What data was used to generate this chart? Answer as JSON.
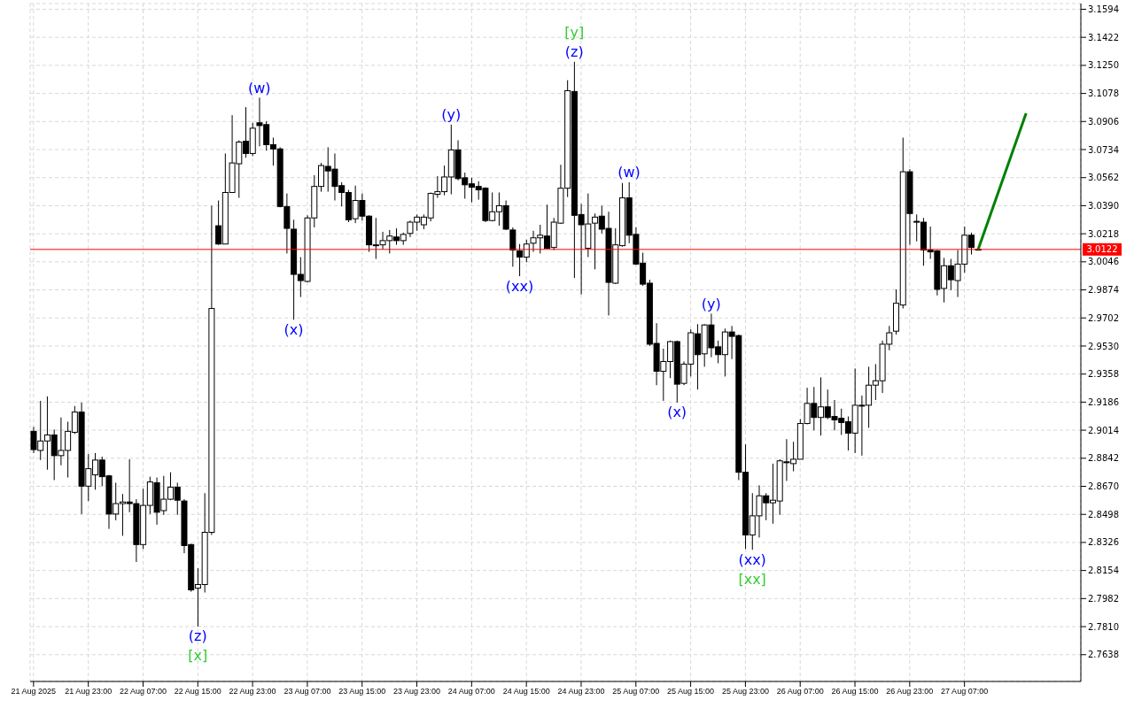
{
  "chart_data": {
    "type": "candlestick",
    "x": [
      "2025-08-21T15:00",
      "2025-08-21T16:00",
      "2025-08-21T17:00",
      "2025-08-21T18:00",
      "2025-08-21T19:00",
      "2025-08-21T20:00",
      "2025-08-21T21:00",
      "2025-08-21T22:00",
      "2025-08-21T23:00",
      "2025-08-22T00:00",
      "2025-08-22T01:00",
      "2025-08-22T02:00",
      "2025-08-22T03:00",
      "2025-08-22T04:00",
      "2025-08-22T05:00",
      "2025-08-22T06:00",
      "2025-08-22T07:00",
      "2025-08-22T08:00",
      "2025-08-22T09:00",
      "2025-08-22T10:00",
      "2025-08-22T11:00",
      "2025-08-22T12:00",
      "2025-08-22T13:00",
      "2025-08-22T14:00",
      "2025-08-22T15:00",
      "2025-08-22T16:00",
      "2025-08-22T17:00",
      "2025-08-22T18:00",
      "2025-08-22T19:00",
      "2025-08-22T20:00",
      "2025-08-22T21:00",
      "2025-08-22T22:00",
      "2025-08-22T23:00",
      "2025-08-23T00:00",
      "2025-08-23T01:00",
      "2025-08-23T02:00",
      "2025-08-23T03:00",
      "2025-08-23T04:00",
      "2025-08-23T05:00",
      "2025-08-23T06:00",
      "2025-08-23T07:00",
      "2025-08-23T08:00",
      "2025-08-23T09:00",
      "2025-08-23T10:00",
      "2025-08-23T11:00",
      "2025-08-23T12:00",
      "2025-08-23T13:00",
      "2025-08-23T14:00",
      "2025-08-23T15:00",
      "2025-08-23T16:00",
      "2025-08-23T17:00",
      "2025-08-23T18:00",
      "2025-08-23T19:00",
      "2025-08-23T20:00",
      "2025-08-23T21:00",
      "2025-08-23T22:00",
      "2025-08-23T23:00",
      "2025-08-24T00:00",
      "2025-08-24T01:00",
      "2025-08-24T02:00",
      "2025-08-24T03:00",
      "2025-08-24T04:00",
      "2025-08-24T05:00",
      "2025-08-24T06:00",
      "2025-08-24T07:00",
      "2025-08-24T08:00",
      "2025-08-24T09:00",
      "2025-08-24T10:00",
      "2025-08-24T11:00",
      "2025-08-24T12:00",
      "2025-08-24T13:00",
      "2025-08-24T14:00",
      "2025-08-24T15:00",
      "2025-08-24T16:00",
      "2025-08-24T17:00",
      "2025-08-24T18:00",
      "2025-08-24T19:00",
      "2025-08-24T20:00",
      "2025-08-24T21:00",
      "2025-08-24T22:00",
      "2025-08-24T23:00",
      "2025-08-25T00:00",
      "2025-08-25T01:00",
      "2025-08-25T02:00",
      "2025-08-25T03:00",
      "2025-08-25T04:00",
      "2025-08-25T05:00",
      "2025-08-25T06:00",
      "2025-08-25T07:00",
      "2025-08-25T08:00",
      "2025-08-25T09:00",
      "2025-08-25T10:00",
      "2025-08-25T11:00",
      "2025-08-25T12:00",
      "2025-08-25T13:00",
      "2025-08-25T14:00",
      "2025-08-25T15:00",
      "2025-08-25T16:00",
      "2025-08-25T17:00",
      "2025-08-25T18:00",
      "2025-08-25T19:00",
      "2025-08-25T20:00",
      "2025-08-25T21:00",
      "2025-08-25T22:00",
      "2025-08-25T23:00",
      "2025-08-26T00:00",
      "2025-08-26T01:00",
      "2025-08-26T02:00",
      "2025-08-26T03:00",
      "2025-08-26T04:00",
      "2025-08-26T05:00",
      "2025-08-26T06:00",
      "2025-08-26T07:00",
      "2025-08-26T08:00",
      "2025-08-26T09:00",
      "2025-08-26T10:00",
      "2025-08-26T11:00",
      "2025-08-26T12:00",
      "2025-08-26T13:00",
      "2025-08-26T14:00",
      "2025-08-26T15:00",
      "2025-08-26T16:00",
      "2025-08-26T17:00",
      "2025-08-26T18:00",
      "2025-08-26T19:00",
      "2025-08-26T20:00",
      "2025-08-26T21:00",
      "2025-08-26T22:00",
      "2025-08-26T23:00",
      "2025-08-27T00:00",
      "2025-08-27T01:00",
      "2025-08-27T02:00",
      "2025-08-27T03:00",
      "2025-08-27T04:00",
      "2025-08-27T05:00",
      "2025-08-27T06:00",
      "2025-08-27T07:00",
      "2025-08-27T08:00",
      "2025-08-27T09:00"
    ],
    "ohlc": [
      [
        2.9007,
        2.9034,
        2.8874,
        2.8895
      ],
      [
        2.889,
        2.9194,
        2.8831,
        2.8948
      ],
      [
        2.8948,
        2.9221,
        2.8772,
        2.8985
      ],
      [
        2.8985,
        2.9018,
        2.8708,
        2.8858
      ],
      [
        2.8858,
        2.9092,
        2.8799,
        2.889
      ],
      [
        2.889,
        2.9066,
        2.8724,
        2.9007
      ],
      [
        2.9001,
        2.9162,
        2.8991,
        2.9125
      ],
      [
        2.9125,
        2.9183,
        2.85,
        2.8671
      ],
      [
        2.8671,
        2.8869,
        2.858,
        2.8778
      ],
      [
        2.874,
        2.8874,
        2.8649,
        2.8831
      ],
      [
        2.8831,
        2.8852,
        2.8671,
        2.8729
      ],
      [
        2.8734,
        2.874,
        2.8409,
        2.85
      ],
      [
        2.85,
        2.8692,
        2.8462,
        2.8564
      ],
      [
        2.8564,
        2.8623,
        2.8367,
        2.8574
      ],
      [
        2.8574,
        2.8836,
        2.8511,
        2.8564
      ],
      [
        2.8564,
        2.8591,
        2.8206,
        2.8313
      ],
      [
        2.8313,
        2.8655,
        2.8286,
        2.8553
      ],
      [
        2.8553,
        2.8729,
        2.85,
        2.8697
      ],
      [
        2.8692,
        2.8724,
        2.8435,
        2.8511
      ],
      [
        2.8521,
        2.8734,
        2.8495,
        2.8591
      ],
      [
        2.8591,
        2.8756,
        2.8585,
        2.8665
      ],
      [
        2.8665,
        2.8692,
        2.8495,
        2.8585
      ],
      [
        2.858,
        2.8591,
        2.826,
        2.8307
      ],
      [
        2.8313,
        2.8318,
        2.8024,
        2.8035
      ],
      [
        2.8046,
        2.8168,
        2.7811,
        2.8068
      ],
      [
        2.8068,
        2.8628,
        2.8019,
        2.8388
      ],
      [
        2.8388,
        3.039,
        2.8372,
        2.976
      ],
      [
        3.0267,
        3.0422,
        3.015,
        3.0155
      ],
      [
        3.0155,
        3.071,
        3.0155,
        3.0471
      ],
      [
        3.0471,
        3.0945,
        3.0471,
        3.0652
      ],
      [
        3.0647,
        3.0791,
        3.0438,
        3.078
      ],
      [
        3.0785,
        3.0994,
        3.0684,
        3.071
      ],
      [
        3.071,
        3.0898,
        3.0694,
        3.0865
      ],
      [
        3.0898,
        3.1052,
        3.0754,
        3.0881
      ],
      [
        3.0887,
        3.0908,
        3.0727,
        3.0764
      ],
      [
        3.0764,
        3.0807,
        3.0636,
        3.0738
      ],
      [
        3.0738,
        3.0748,
        3.038,
        3.0385
      ],
      [
        3.0385,
        3.0465,
        3.0097,
        3.0251
      ],
      [
        3.0246,
        3.0304,
        2.9691,
        2.9969
      ],
      [
        2.9969,
        3.0075,
        2.983,
        2.9931
      ],
      [
        2.9926,
        3.0331,
        2.992,
        3.0315
      ],
      [
        3.0315,
        3.0577,
        3.0257,
        3.0508
      ],
      [
        3.0508,
        3.0652,
        3.0476,
        3.0636
      ],
      [
        3.0631,
        3.0748,
        3.0476,
        3.0603
      ],
      [
        3.0614,
        3.071,
        3.0422,
        3.0508
      ],
      [
        3.0513,
        3.0534,
        3.0385,
        3.0471
      ],
      [
        3.0471,
        3.0487,
        3.0289,
        3.0304
      ],
      [
        3.031,
        3.0513,
        3.0283,
        3.0422
      ],
      [
        3.0422,
        3.0465,
        3.0299,
        3.0326
      ],
      [
        3.0326,
        3.0331,
        3.0107,
        3.015
      ],
      [
        3.015,
        3.0315,
        3.0064,
        3.015
      ],
      [
        3.015,
        3.023,
        3.0123,
        3.0176
      ],
      [
        3.0176,
        3.0241,
        3.0097,
        3.0204
      ],
      [
        3.0198,
        3.0251,
        3.015,
        3.0176
      ],
      [
        3.0176,
        3.0225,
        3.015,
        3.0214
      ],
      [
        3.022,
        3.0299,
        3.0198,
        3.0289
      ],
      [
        3.0289,
        3.0336,
        3.0236,
        3.032
      ],
      [
        3.0273,
        3.0336,
        3.0246,
        3.032
      ],
      [
        3.0315,
        3.0471,
        3.0294,
        3.0465
      ],
      [
        3.046,
        3.0571,
        3.0438,
        3.0476
      ],
      [
        3.0476,
        3.0636,
        3.0454,
        3.0566
      ],
      [
        3.0566,
        3.0887,
        3.046,
        3.0732
      ],
      [
        3.0732,
        3.0791,
        3.0545,
        3.0556
      ],
      [
        3.0561,
        3.0593,
        3.0433,
        3.0518
      ],
      [
        3.0524,
        3.0561,
        3.0411,
        3.0503
      ],
      [
        3.0508,
        3.054,
        3.0427,
        3.0487
      ],
      [
        3.0497,
        3.0503,
        3.0289,
        3.0299
      ],
      [
        3.0299,
        3.0471,
        3.0294,
        3.0353
      ],
      [
        3.0353,
        3.0471,
        3.0267,
        3.039
      ],
      [
        3.039,
        3.0422,
        3.0241,
        3.0246
      ],
      [
        3.0241,
        3.0257,
        3.0016,
        3.0118
      ],
      [
        3.0113,
        3.0155,
        2.9958,
        3.0075
      ],
      [
        3.0075,
        3.0182,
        3.0043,
        3.0155
      ],
      [
        3.016,
        3.0236,
        3.0107,
        3.0193
      ],
      [
        3.0193,
        3.0273,
        3.0097,
        3.0209
      ],
      [
        3.0204,
        3.0396,
        3.0129,
        3.0129
      ],
      [
        3.0134,
        3.0315,
        3.0118,
        3.0289
      ],
      [
        3.0283,
        3.0641,
        3.0278,
        3.0497
      ],
      [
        3.0497,
        3.1159,
        3.0443,
        3.1095
      ],
      [
        3.109,
        3.1272,
        2.9947,
        3.0331
      ],
      [
        3.0336,
        3.0401,
        2.9846,
        3.0273
      ],
      [
        3.0129,
        3.0465,
        3.0075,
        3.0278
      ],
      [
        3.0283,
        3.0342,
        3.0,
        3.032
      ],
      [
        3.0326,
        3.039,
        3.022,
        3.0246
      ],
      [
        3.0251,
        3.0353,
        2.9717,
        2.992
      ],
      [
        2.9915,
        3.0251,
        2.991,
        3.015
      ],
      [
        3.0145,
        3.0529,
        3.0139,
        3.0438
      ],
      [
        3.0438,
        3.0534,
        3.016,
        3.0209
      ],
      [
        3.0214,
        3.0257,
        3.0027,
        3.0032
      ],
      [
        3.0038,
        3.0102,
        2.9899,
        2.9909
      ],
      [
        2.9915,
        2.9936,
        2.953,
        2.9541
      ],
      [
        2.9546,
        2.967,
        2.929,
        2.9375
      ],
      [
        2.9375,
        2.9514,
        2.9194,
        2.9435
      ],
      [
        2.9435,
        2.9563,
        2.9333,
        2.9557
      ],
      [
        2.9557,
        2.9563,
        2.9183,
        2.9296
      ],
      [
        2.9301,
        2.9435,
        2.929,
        2.9419
      ],
      [
        2.9419,
        2.9632,
        2.9343,
        2.9611
      ],
      [
        2.9605,
        2.9664,
        2.9263,
        2.9477
      ],
      [
        2.9482,
        2.9664,
        2.9403,
        2.9659
      ],
      [
        2.9659,
        2.9728,
        2.9461,
        2.9519
      ],
      [
        2.9525,
        2.9563,
        2.9424,
        2.9477
      ],
      [
        2.9477,
        2.9637,
        2.9343,
        2.9616
      ],
      [
        2.9616,
        2.9653,
        2.945,
        2.9589
      ],
      [
        2.9594,
        2.96,
        2.8708,
        2.8756
      ],
      [
        2.8756,
        2.8927,
        2.8286,
        2.8372
      ],
      [
        2.8372,
        2.8628,
        2.8281,
        2.8489
      ],
      [
        2.8489,
        2.8676,
        2.8356,
        2.8612
      ],
      [
        2.8612,
        2.8628,
        2.8462,
        2.8569
      ],
      [
        2.8569,
        2.8809,
        2.8441,
        2.8585
      ],
      [
        2.858,
        2.8836,
        2.8495,
        2.8826
      ],
      [
        2.882,
        2.8959,
        2.8703,
        2.8815
      ],
      [
        2.8809,
        2.8943,
        2.8762,
        2.8836
      ],
      [
        2.8836,
        2.9082,
        2.8836,
        2.9055
      ],
      [
        2.9055,
        2.9274,
        2.905,
        2.9178
      ],
      [
        2.9178,
        2.9279,
        2.9013,
        2.9092
      ],
      [
        2.9092,
        2.9338,
        2.8981,
        2.9157
      ],
      [
        2.9157,
        2.9263,
        2.9082,
        2.9092
      ],
      [
        2.9098,
        2.9199,
        2.9013,
        2.9077
      ],
      [
        2.9087,
        2.9146,
        2.8985,
        2.9061
      ],
      [
        2.9066,
        2.9098,
        2.889,
        2.8996
      ],
      [
        2.8996,
        2.9392,
        2.8874,
        2.9167
      ],
      [
        2.9167,
        2.9226,
        2.8858,
        2.9162
      ],
      [
        2.9167,
        2.9403,
        2.9029,
        2.929
      ],
      [
        2.929,
        2.9419,
        2.9199,
        2.9317
      ],
      [
        2.9317,
        2.9563,
        2.9242,
        2.9541
      ],
      [
        2.9541,
        2.9653,
        2.9504,
        2.9611
      ],
      [
        2.9621,
        2.9877,
        2.96,
        2.9792
      ],
      [
        2.9781,
        3.0807,
        2.976,
        3.0598
      ],
      [
        3.0598,
        3.0614,
        3.015,
        3.0342
      ],
      [
        3.0294,
        3.0336,
        3.0171,
        3.0294
      ],
      [
        3.0289,
        3.0315,
        3.0022,
        3.0118
      ],
      [
        3.0118,
        3.0262,
        3.0064,
        3.0107
      ],
      [
        3.0113,
        3.0118,
        2.984,
        2.9877
      ],
      [
        2.9883,
        3.007,
        2.9797,
        3.0022
      ],
      [
        3.0022,
        3.0064,
        2.9872,
        2.9936
      ],
      [
        2.9931,
        3.0118,
        2.983,
        3.0032
      ],
      [
        3.0032,
        3.0262,
        2.9979,
        3.0209
      ],
      [
        3.0209,
        3.0225,
        3.0091,
        3.0134
      ],
      [
        3.0123,
        3.0128,
        3.0118,
        3.0122
      ]
    ],
    "series": [
      {
        "type": "line",
        "x": [
          "2025-08-27T09:00",
          "2025-08-27T16:00"
        ],
        "values": [
          3.0122,
          3.0956
        ],
        "color": "#008000"
      }
    ],
    "xlim": [
      "2025-08-21T14:30",
      "2025-08-28T00:00"
    ],
    "xticks": [
      {
        "value": "2025-08-21T15:00",
        "label": "21 Aug 2025"
      },
      {
        "value": "2025-08-21T23:00",
        "label": "21 Aug 23:00"
      },
      {
        "value": "2025-08-22T07:00",
        "label": "22 Aug 07:00"
      },
      {
        "value": "2025-08-22T15:00",
        "label": "22 Aug 15:00"
      },
      {
        "value": "2025-08-22T23:00",
        "label": "22 Aug 23:00"
      },
      {
        "value": "2025-08-23T07:00",
        "label": "23 Aug 07:00"
      },
      {
        "value": "2025-08-23T15:00",
        "label": "23 Aug 15:00"
      },
      {
        "value": "2025-08-23T23:00",
        "label": "23 Aug 23:00"
      },
      {
        "value": "2025-08-24T07:00",
        "label": "24 Aug 07:00"
      },
      {
        "value": "2025-08-24T15:00",
        "label": "24 Aug 15:00"
      },
      {
        "value": "2025-08-24T23:00",
        "label": "24 Aug 23:00"
      },
      {
        "value": "2025-08-25T07:00",
        "label": "25 Aug 07:00"
      },
      {
        "value": "2025-08-25T15:00",
        "label": "25 Aug 15:00"
      },
      {
        "value": "2025-08-25T23:00",
        "label": "25 Aug 23:00"
      },
      {
        "value": "2025-08-26T07:00",
        "label": "26 Aug 07:00"
      },
      {
        "value": "2025-08-26T15:00",
        "label": "26 Aug 15:00"
      },
      {
        "value": "2025-08-26T23:00",
        "label": "26 Aug 23:00"
      },
      {
        "value": "2025-08-27T07:00",
        "label": "27 Aug 07:00"
      }
    ],
    "ylim": [
      2.7474,
      3.1629
    ],
    "yticks": [
      3.1594,
      3.1422,
      {
        "value": 3.125,
        "label": "3.1250"
      },
      3.1078,
      3.0906,
      3.0734,
      3.0562,
      {
        "value": 3.039,
        "label": "3.0390"
      },
      3.0218,
      3.0046,
      2.9874,
      2.9702,
      {
        "value": 2.953,
        "label": "2.9530"
      },
      2.9358,
      2.9186,
      2.9014,
      2.8842,
      {
        "value": 2.867,
        "label": "2.8670"
      },
      2.8498,
      2.8326,
      2.8154,
      2.7982,
      {
        "value": 2.781,
        "label": "2.7810"
      },
      2.7638
    ],
    "grid": true,
    "ref_lines": [
      {
        "axis": "y",
        "value": 3.0122,
        "label": "3.0122",
        "color": "#ff0000"
      }
    ],
    "annotations": [
      {
        "text": "(z)",
        "x": "2025-08-22T15:00",
        "y": 2.7811
      },
      {
        "text": "[x]",
        "x": "2025-08-22T15:00",
        "y": 2.7811
      },
      {
        "text": "(w)",
        "x": "2025-08-23T00:00",
        "y": 3.1052
      },
      {
        "text": "(x)",
        "x": "2025-08-23T05:00",
        "y": 2.9691
      },
      {
        "text": "(y)",
        "x": "2025-08-24T04:00",
        "y": 3.0887
      },
      {
        "text": "(xx)",
        "x": "2025-08-24T14:00",
        "y": 2.9958
      },
      {
        "text": "(z)",
        "x": "2025-08-24T22:00",
        "y": 3.1272
      },
      {
        "text": "[y]",
        "x": "2025-08-24T22:00",
        "y": 3.1272
      },
      {
        "text": "(w)",
        "x": "2025-08-25T06:00",
        "y": 3.0534
      },
      {
        "text": "(x)",
        "x": "2025-08-25T13:00",
        "y": 2.9183
      },
      {
        "text": "(y)",
        "x": "2025-08-25T18:00",
        "y": 2.9728
      },
      {
        "text": "(xx)",
        "x": "2025-08-26T00:00",
        "y": 2.8281
      },
      {
        "text": "[xx]",
        "x": "2025-08-26T00:00",
        "y": 2.8281
      }
    ]
  }
}
